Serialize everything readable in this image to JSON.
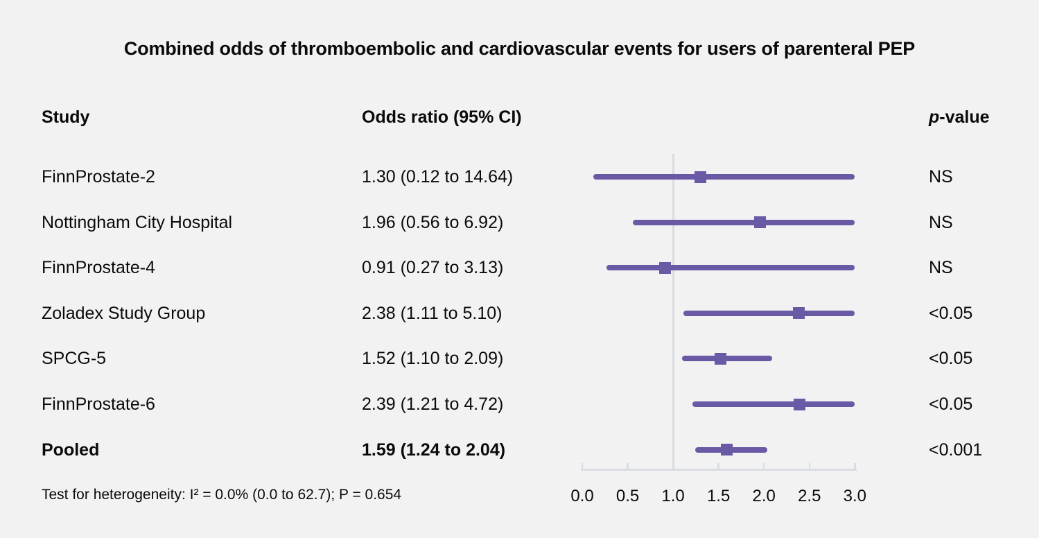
{
  "figure": {
    "background": "#f2f2f2",
    "accent_purple": "#6a59a5",
    "axis_gray": "#d9dde2",
    "text_color": "#0a0a0a"
  },
  "chart_data": {
    "type": "forest",
    "title": "Combined odds of thromboembolic and cardiovascular events for users of parenteral PEP",
    "columns": {
      "study": "Study",
      "odds_ratio": "Odds ratio (95% CI)",
      "p_italic": "p",
      "p_rest": "-value"
    },
    "x_range": [
      0.0,
      3.0
    ],
    "x_ticks": [
      "0.0",
      "0.5",
      "1.0",
      "1.5",
      "2.0",
      "2.5",
      "3.0"
    ],
    "reference_line": 1.0,
    "clip_max": 3.0,
    "rows": [
      {
        "study": "FinnProstate-2",
        "or": 1.3,
        "ci_low": 0.12,
        "ci_high": 14.64,
        "or_label": "1.30 (0.12 to 14.64)",
        "p": "NS",
        "bold": false
      },
      {
        "study": "Nottingham City Hospital",
        "or": 1.96,
        "ci_low": 0.56,
        "ci_high": 6.92,
        "or_label": "1.96 (0.56 to 6.92)",
        "p": "NS",
        "bold": false
      },
      {
        "study": "FinnProstate-4",
        "or": 0.91,
        "ci_low": 0.27,
        "ci_high": 3.13,
        "or_label": "0.91 (0.27 to 3.13)",
        "p": "NS",
        "bold": false
      },
      {
        "study": "Zoladex Study Group",
        "or": 2.38,
        "ci_low": 1.11,
        "ci_high": 5.1,
        "or_label": "2.38 (1.11 to 5.10)",
        "p": "<0.05",
        "bold": false
      },
      {
        "study": "SPCG-5",
        "or": 1.52,
        "ci_low": 1.1,
        "ci_high": 2.09,
        "or_label": "1.52 (1.10 to 2.09)",
        "p": "<0.05",
        "bold": false
      },
      {
        "study": "FinnProstate-6",
        "or": 2.39,
        "ci_low": 1.21,
        "ci_high": 4.72,
        "or_label": "2.39 (1.21 to 4.72)",
        "p": "<0.05",
        "bold": false
      },
      {
        "study": "Pooled",
        "or": 1.59,
        "ci_low": 1.24,
        "ci_high": 2.04,
        "or_label": "1.59 (1.24 to 2.04)",
        "p": "<0.001",
        "bold": true
      }
    ],
    "footnote": "Test for heterogeneity: I² = 0.0% (0.0 to 62.7); P = 0.654"
  }
}
